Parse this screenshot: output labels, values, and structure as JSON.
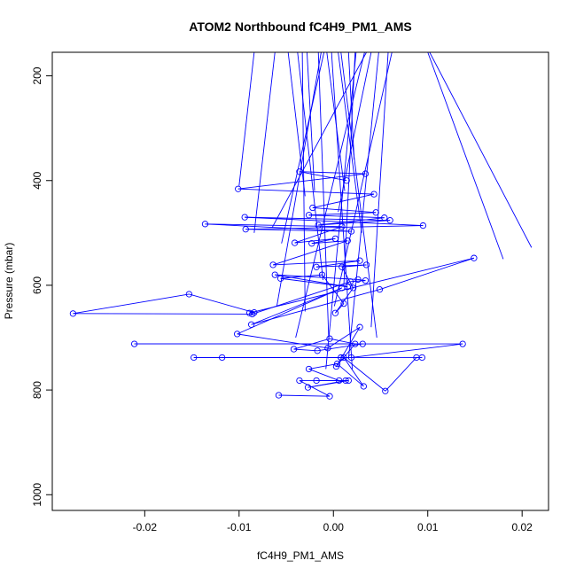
{
  "chart_data": {
    "type": "line",
    "title": "ATOM2 Northbound fC4H9_PM1_AMS",
    "xlabel": "fC4H9_PM1_AMS",
    "ylabel": "Pressure (mbar)",
    "xlim": [
      -0.0298,
      0.0228
    ],
    "ylim": [
      1030,
      155
    ],
    "y_reversed": true,
    "x_ticks": [
      -0.02,
      -0.01,
      0.0,
      0.01,
      0.02
    ],
    "x_tick_labels": [
      "-0.02",
      "-0.01",
      "0.00",
      "0.01",
      "0.02"
    ],
    "y_ticks": [
      200,
      400,
      600,
      800,
      1000
    ],
    "y_tick_labels": [
      "200",
      "400",
      "600",
      "800",
      "1000"
    ],
    "grid": false,
    "legend": "none",
    "series_color": "#0000ff",
    "series": [
      {
        "points": [
          [
            -0.0058,
            810
          ],
          [
            -0.0004,
            812
          ],
          [
            -0.0036,
            782
          ],
          [
            0.0016,
            782
          ],
          [
            -0.0027,
            795
          ],
          [
            0.0013,
            782
          ],
          [
            -0.0018,
            782
          ],
          [
            0.0006,
            782
          ],
          [
            -0.0026,
            760
          ],
          [
            0.0004,
            750
          ],
          [
            0.0032,
            793
          ],
          [
            0.0011,
            738
          ],
          [
            0.0055,
            802
          ],
          [
            0.0088,
            738
          ],
          [
            0.0094,
            738
          ],
          [
            0.0008,
            738
          ],
          [
            -0.0148,
            738
          ],
          [
            0.0008,
            738
          ],
          [
            -0.0118,
            738
          ],
          [
            0.0019,
            738
          ],
          [
            0.0137,
            712
          ],
          [
            -0.0211,
            712
          ],
          [
            0.0031,
            712
          ],
          [
            -0.0017,
            725
          ],
          [
            -0.0042,
            722
          ],
          [
            -0.0004,
            702
          ],
          [
            0.0023,
            712
          ],
          [
            0.0003,
            755
          ],
          [
            0.0028,
            680
          ],
          [
            -0.0006,
            720
          ],
          [
            -0.0102,
            693
          ],
          [
            0.0009,
            605
          ],
          [
            -0.0087,
            675
          ],
          [
            0.0049,
            608
          ],
          [
            0.0149,
            548
          ],
          [
            -0.0089,
            653
          ],
          [
            -0.0084,
            652
          ],
          [
            -0.0153,
            617
          ],
          [
            -0.0276,
            654
          ],
          [
            -0.0086,
            655
          ],
          [
            0.0018,
            593
          ],
          [
            0.0034,
            591
          ],
          [
            0.0026,
            589
          ],
          [
            -0.0062,
            580
          ],
          [
            0.0015,
            603
          ],
          [
            -0.0056,
            587
          ],
          [
            -0.0012,
            580
          ],
          [
            0.0011,
            635
          ],
          [
            0.0002,
            653
          ],
          [
            0.0021,
            605
          ],
          [
            0.0009,
            565
          ],
          [
            0.0035,
            561
          ],
          [
            -0.0018,
            565
          ],
          [
            0.0028,
            553
          ],
          [
            -0.0064,
            561
          ],
          [
            0.0015,
            515
          ],
          [
            -0.0023,
            520
          ],
          [
            0.0002,
            511
          ],
          [
            -0.0041,
            519
          ],
          [
            0.0009,
            488
          ],
          [
            -0.0136,
            483
          ],
          [
            0.0019,
            497
          ],
          [
            -0.0093,
            493
          ],
          [
            0.0095,
            486
          ],
          [
            -0.0094,
            470
          ],
          [
            0.006,
            476
          ],
          [
            -0.0016,
            485
          ],
          [
            0.0054,
            471
          ],
          [
            -0.0026,
            466
          ],
          [
            0.0045,
            461
          ],
          [
            -0.0022,
            452
          ],
          [
            0.0043,
            426
          ],
          [
            -0.0101,
            416
          ],
          [
            0.0034,
            387
          ],
          [
            -0.0036,
            383
          ],
          [
            0.0014,
            400
          ]
        ]
      }
    ],
    "offscale_segments": [
      [
        [
          -0.003,
          650
        ],
        [
          -0.0033,
          155
        ]
      ],
      [
        [
          0.0011,
          600
        ],
        [
          0.0023,
          155
        ]
      ],
      [
        [
          -0.0055,
          520
        ],
        [
          -0.001,
          155
        ]
      ],
      [
        [
          0.018,
          550
        ],
        [
          0.01,
          155
        ]
      ],
      [
        [
          -0.0084,
          500
        ],
        [
          -0.0062,
          155
        ]
      ],
      [
        [
          0.0005,
          460
        ],
        [
          0.004,
          155
        ]
      ],
      [
        [
          -0.0005,
          700
        ],
        [
          -0.0016,
          155
        ]
      ],
      [
        [
          0.0016,
          740
        ],
        [
          0.0048,
          155
        ]
      ],
      [
        [
          -0.002,
          420
        ],
        [
          -0.0028,
          155
        ]
      ],
      [
        [
          0.003,
          500
        ],
        [
          0.0005,
          155
        ]
      ],
      [
        [
          0.021,
          528
        ],
        [
          0.0102,
          155
        ]
      ],
      [
        [
          -0.0008,
          760
        ],
        [
          0.0024,
          155
        ]
      ],
      [
        [
          -0.006,
          640
        ],
        [
          -0.0013,
          155
        ]
      ],
      [
        [
          0.004,
          680
        ],
        [
          0.0058,
          155
        ]
      ],
      [
        [
          -0.01,
          410
        ],
        [
          -0.0084,
          155
        ]
      ],
      [
        [
          0.0012,
          420
        ],
        [
          -0.0007,
          155
        ]
      ],
      [
        [
          -0.004,
          700
        ],
        [
          0.0033,
          155
        ]
      ],
      [
        [
          0.0022,
          360
        ],
        [
          0.0016,
          155
        ]
      ],
      [
        [
          -0.0011,
          590
        ],
        [
          -0.0038,
          155
        ]
      ],
      [
        [
          0.0046,
          700
        ],
        [
          0.0008,
          155
        ]
      ],
      [
        [
          -0.0065,
          490
        ],
        [
          0.0035,
          155
        ]
      ],
      [
        [
          0.0001,
          640
        ],
        [
          0.0062,
          155
        ]
      ],
      [
        [
          -0.003,
          430
        ],
        [
          -0.0048,
          155
        ]
      ],
      [
        [
          0.002,
          760
        ],
        [
          -0.0002,
          155
        ]
      ]
    ]
  }
}
